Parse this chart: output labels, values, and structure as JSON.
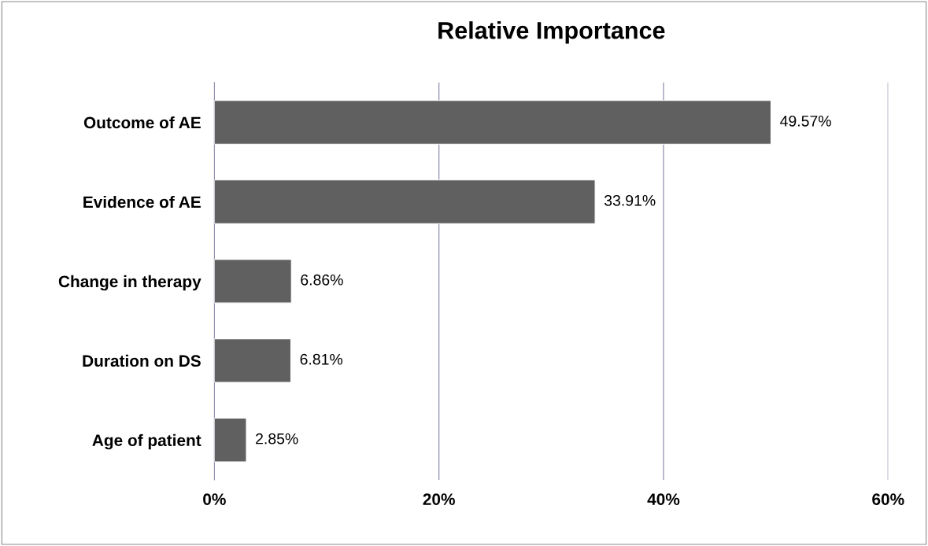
{
  "chart_data": {
    "type": "bar",
    "orientation": "horizontal",
    "title": "Relative Importance",
    "categories": [
      "Outcome of AE",
      "Evidence of AE",
      "Change in therapy",
      "Duration on DS",
      "Age of patient"
    ],
    "values": [
      49.57,
      33.91,
      6.86,
      6.81,
      2.85
    ],
    "value_labels": [
      "49.57%",
      "33.91%",
      "6.86%",
      "6.81%",
      "2.85%"
    ],
    "color": "#606060",
    "xlim": [
      0,
      60
    ],
    "xticks": [
      {
        "value": 0,
        "label": "0%"
      },
      {
        "value": 20,
        "label": "20%"
      },
      {
        "value": 40,
        "label": "40%"
      },
      {
        "value": 60,
        "label": "60%"
      }
    ],
    "grid": "x"
  }
}
